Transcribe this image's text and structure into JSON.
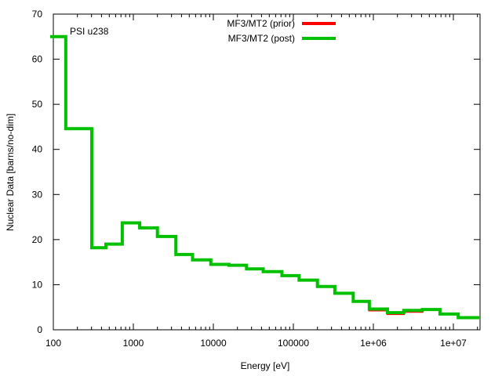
{
  "chart_data": {
    "type": "line",
    "title": "",
    "annotation": "PSI u238",
    "xlabel": "Energy [eV]",
    "ylabel": "Nuclear Data [barns/no-dim]",
    "xscale": "log",
    "xlim": [
      100,
      21000000
    ],
    "ylim": [
      0,
      70
    ],
    "xticks": [
      {
        "v": 100,
        "label": "100"
      },
      {
        "v": 1000,
        "label": "1000"
      },
      {
        "v": 10000,
        "label": "10000"
      },
      {
        "v": 100000,
        "label": "100000"
      },
      {
        "v": 1000000,
        "label": "1e+06"
      },
      {
        "v": 10000000,
        "label": "1e+07"
      }
    ],
    "yticks": [
      {
        "v": 0,
        "label": "0"
      },
      {
        "v": 10,
        "label": "10"
      },
      {
        "v": 20,
        "label": "20"
      },
      {
        "v": 30,
        "label": "30"
      },
      {
        "v": 40,
        "label": "40"
      },
      {
        "v": 50,
        "label": "50"
      },
      {
        "v": 60,
        "label": "60"
      },
      {
        "v": 70,
        "label": "70"
      }
    ],
    "legend_position": "top-center",
    "edges": [
      100,
      143,
      302,
      454,
      727,
      1200,
      2000,
      3400,
      5500,
      9300,
      15700,
      26000,
      42000,
      72000,
      118000,
      200000,
      330000,
      560000,
      890000,
      1500000,
      2400000,
      4100000,
      6800000,
      11500000,
      21000000
    ],
    "series": [
      {
        "name": "MF3/MT2 (prior)",
        "color": "#ff0000",
        "values": [
          65,
          44.6,
          18.2,
          19.0,
          23.7,
          22.6,
          20.7,
          16.7,
          15.5,
          14.5,
          14.3,
          13.5,
          12.9,
          12.0,
          11.0,
          9.6,
          8.1,
          6.3,
          4.3,
          3.5,
          4.0,
          4.5,
          3.5,
          2.7
        ]
      },
      {
        "name": "MF3/MT2 (post)",
        "color": "#00c000",
        "values": [
          65,
          44.6,
          18.2,
          19.0,
          23.7,
          22.6,
          20.7,
          16.7,
          15.5,
          14.5,
          14.3,
          13.5,
          12.9,
          12.0,
          11.0,
          9.6,
          8.1,
          6.3,
          4.6,
          3.8,
          4.3,
          4.5,
          3.5,
          2.7
        ]
      }
    ]
  }
}
